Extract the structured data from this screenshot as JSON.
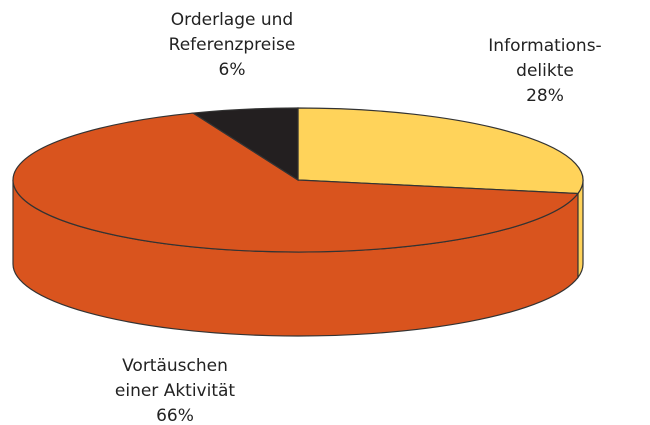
{
  "chart_data": {
    "type": "pie",
    "categories": [
      [
        "Informations-",
        "delikte"
      ],
      [
        "Vortäuschen",
        "einer Aktivität"
      ],
      [
        "Orderlage und",
        "Referenzpreise"
      ]
    ],
    "values": [
      28,
      66,
      6
    ],
    "value_labels": [
      "28%",
      "66%",
      "6%"
    ],
    "colors": [
      "#ffd35a",
      "#d9541e",
      "#231f20"
    ]
  }
}
